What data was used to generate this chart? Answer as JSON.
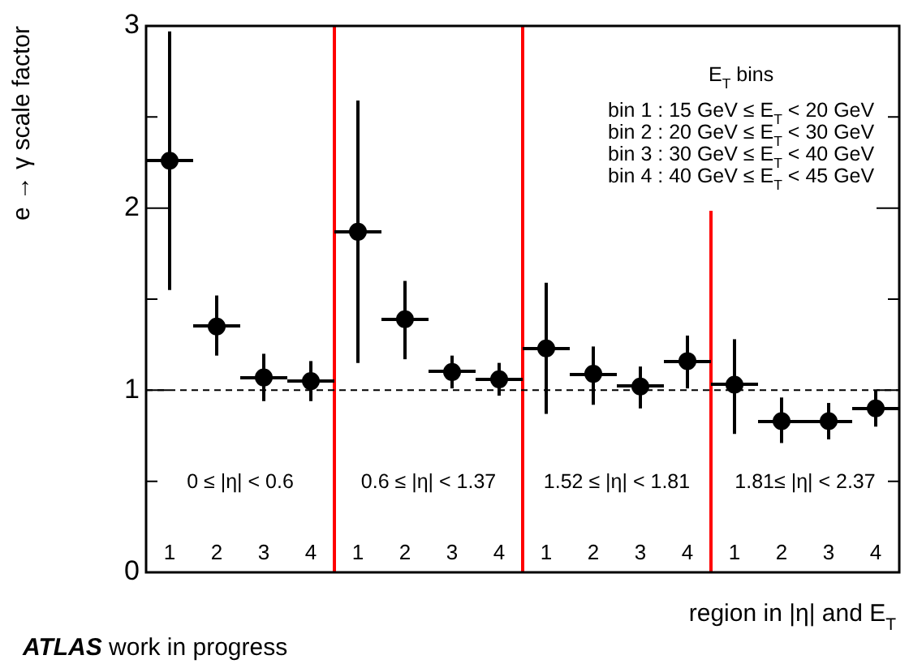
{
  "chart_data": {
    "type": "scatter",
    "ylabel": "e → γ scale factor",
    "xlabel": "region in |η| and E$_{T}$",
    "categories": [
      "1",
      "2",
      "3",
      "4",
      "1",
      "2",
      "3",
      "4",
      "1",
      "2",
      "3",
      "4",
      "1",
      "2",
      "3",
      "4"
    ],
    "series": [
      {
        "color": "#000000",
        "values": [
          2.26,
          1.35,
          1.07,
          1.05,
          1.87,
          1.39,
          1.1,
          1.06,
          1.23,
          1.09,
          1.02,
          1.16,
          1.03,
          0.83,
          0.83,
          0.9
        ],
        "errors": [
          [
            1.55,
            2.97
          ],
          [
            1.19,
            1.52
          ],
          [
            0.94,
            1.2
          ],
          [
            0.94,
            1.16
          ],
          [
            1.15,
            2.59
          ],
          [
            1.17,
            1.6
          ],
          [
            1.01,
            1.19
          ],
          [
            0.97,
            1.15
          ],
          [
            0.87,
            1.59
          ],
          [
            0.92,
            1.24
          ],
          [
            0.9,
            1.13
          ],
          [
            1.01,
            1.3
          ],
          [
            0.76,
            1.28
          ],
          [
            0.71,
            0.96
          ],
          [
            0.73,
            0.93
          ],
          [
            0.8,
            1.0
          ]
        ]
      }
    ],
    "ylim": [
      0,
      3
    ],
    "yticks": [
      0,
      {
        "value": 0.5,
        "label": null
      },
      1,
      {
        "value": 1.5,
        "label": null
      },
      2,
      {
        "value": 2.5,
        "label": null
      },
      3
    ],
    "ref_lines": [
      {
        "axis": "y",
        "value": 1,
        "color": "#000000",
        "line_style": "dashed"
      }
    ],
    "annotations": [
      "0 ≤ |η| < 0.6",
      "0.6 ≤ |η| < 1.37",
      "1.52 ≤ |η| < 1.81",
      "1.81≤ |η| < 2.37",
      "E$_{T}$ bins",
      "bin 1 : 15 GeV ≤ E$_{T}$ < 20 GeV",
      "bin 2 : 20 GeV ≤ E$_{T}$ < 30 GeV",
      "bin 3 : 30 GeV ≤ E$_{T}$ < 40 GeV",
      "bin 4 : 40 GeV ≤ E$_{T}$ < 45 GeV",
      "ATLAS work in progress"
    ],
    "grid": false,
    "legend": false,
    "marker": "circle"
  }
}
